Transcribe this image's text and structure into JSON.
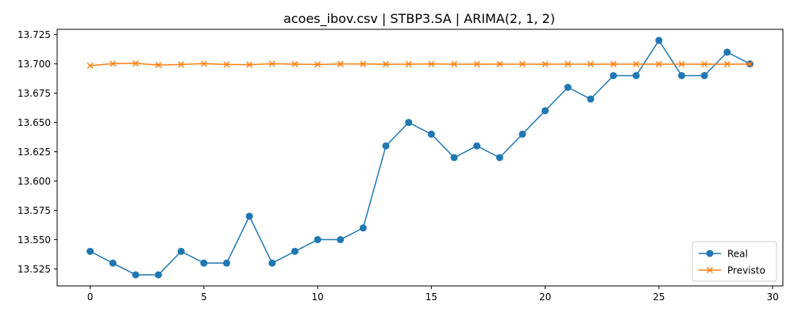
{
  "chart_data": {
    "type": "line",
    "title": "acoes_ibov.csv | STBP3.SA | ARIMA(2, 1, 2)",
    "xlabel": "",
    "ylabel": "",
    "xlim": [
      -1.45,
      30.45
    ],
    "ylim": [
      13.5105,
      13.7295
    ],
    "x_ticks": [
      0,
      5,
      10,
      15,
      20,
      25,
      30
    ],
    "x_tick_labels": [
      "0",
      "5",
      "10",
      "15",
      "20",
      "25",
      "30"
    ],
    "y_ticks": [
      13.525,
      13.55,
      13.575,
      13.6,
      13.625,
      13.65,
      13.675,
      13.7,
      13.725
    ],
    "y_tick_labels": [
      "13.525",
      "13.550",
      "13.575",
      "13.600",
      "13.625",
      "13.650",
      "13.675",
      "13.700",
      "13.725"
    ],
    "grid": false,
    "legend_position": "lower-right",
    "x": [
      0,
      1,
      2,
      3,
      4,
      5,
      6,
      7,
      8,
      9,
      10,
      11,
      12,
      13,
      14,
      15,
      16,
      17,
      18,
      19,
      20,
      21,
      22,
      23,
      24,
      25,
      26,
      27,
      28,
      29
    ],
    "series": [
      {
        "name": "Real",
        "color": "#1f77b4",
        "marker": "circle",
        "values": [
          13.54,
          13.53,
          13.52,
          13.52,
          13.54,
          13.53,
          13.53,
          13.57,
          13.53,
          13.54,
          13.55,
          13.55,
          13.56,
          13.63,
          13.65,
          13.64,
          13.62,
          13.63,
          13.62,
          13.64,
          13.66,
          13.68,
          13.67,
          13.69,
          13.69,
          13.72,
          13.69,
          13.69,
          13.71,
          13.7
        ]
      },
      {
        "name": "Previsto",
        "color": "#ff7f0e",
        "marker": "x",
        "values": [
          13.6985,
          13.7002,
          13.7004,
          13.699,
          13.6995,
          13.7002,
          13.6995,
          13.6993,
          13.7001,
          13.6998,
          13.6995,
          13.6999,
          13.6999,
          13.6997,
          13.6998,
          13.6999,
          13.6998,
          13.6998,
          13.6998,
          13.6998,
          13.6998,
          13.6998,
          13.6998,
          13.6998,
          13.6998,
          13.6998,
          13.6998,
          13.6998,
          13.6998,
          13.6998
        ]
      }
    ]
  }
}
